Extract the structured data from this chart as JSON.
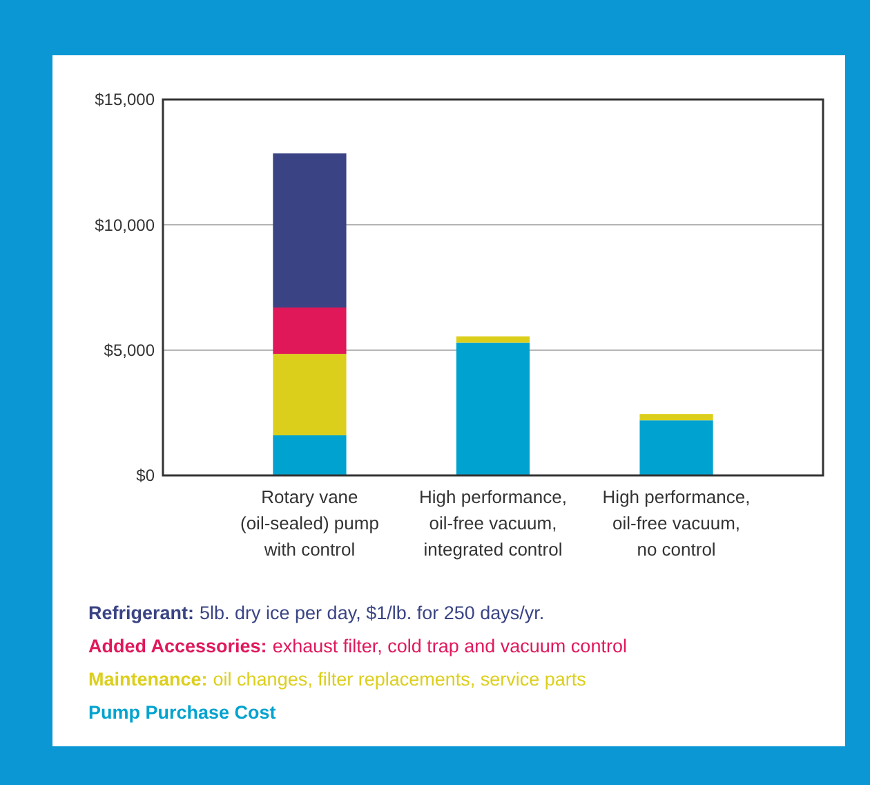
{
  "chart_data": {
    "type": "bar",
    "stacked": true,
    "categories": [
      "Rotary vane\n(oil-sealed) pump\nwith control",
      "High performance,\noil-free vacuum,\nintegrated control",
      "High performance,\noil-free vacuum,\nno control"
    ],
    "series": [
      {
        "name": "Pump Purchase Cost",
        "color": "#00a3cf",
        "values": [
          1600,
          5300,
          2200
        ]
      },
      {
        "name": "Maintenance:",
        "color": "#dccf1c",
        "values": [
          3250,
          250,
          250
        ]
      },
      {
        "name": "Added Accessories:",
        "color": "#e0185a",
        "values": [
          1850,
          0,
          0
        ]
      },
      {
        "name": "Refrigerant:",
        "color": "#3a4484",
        "values": [
          6150,
          0,
          0
        ]
      }
    ],
    "ylim": [
      0,
      15000
    ],
    "yticks": [
      {
        "value": 0,
        "label": "$0"
      },
      {
        "value": 5000,
        "label": "$5,000"
      },
      {
        "value": 10000,
        "label": "$10,000"
      },
      {
        "value": 15000,
        "label": "$15,000"
      }
    ],
    "grid": "y",
    "legend": "bottom",
    "annotations": [
      "5lb. dry ice per day, $1/lb. for 250 days/yr.",
      "exhaust filter, cold trap and vacuum control",
      "oil changes, filter replacements, service parts"
    ]
  }
}
